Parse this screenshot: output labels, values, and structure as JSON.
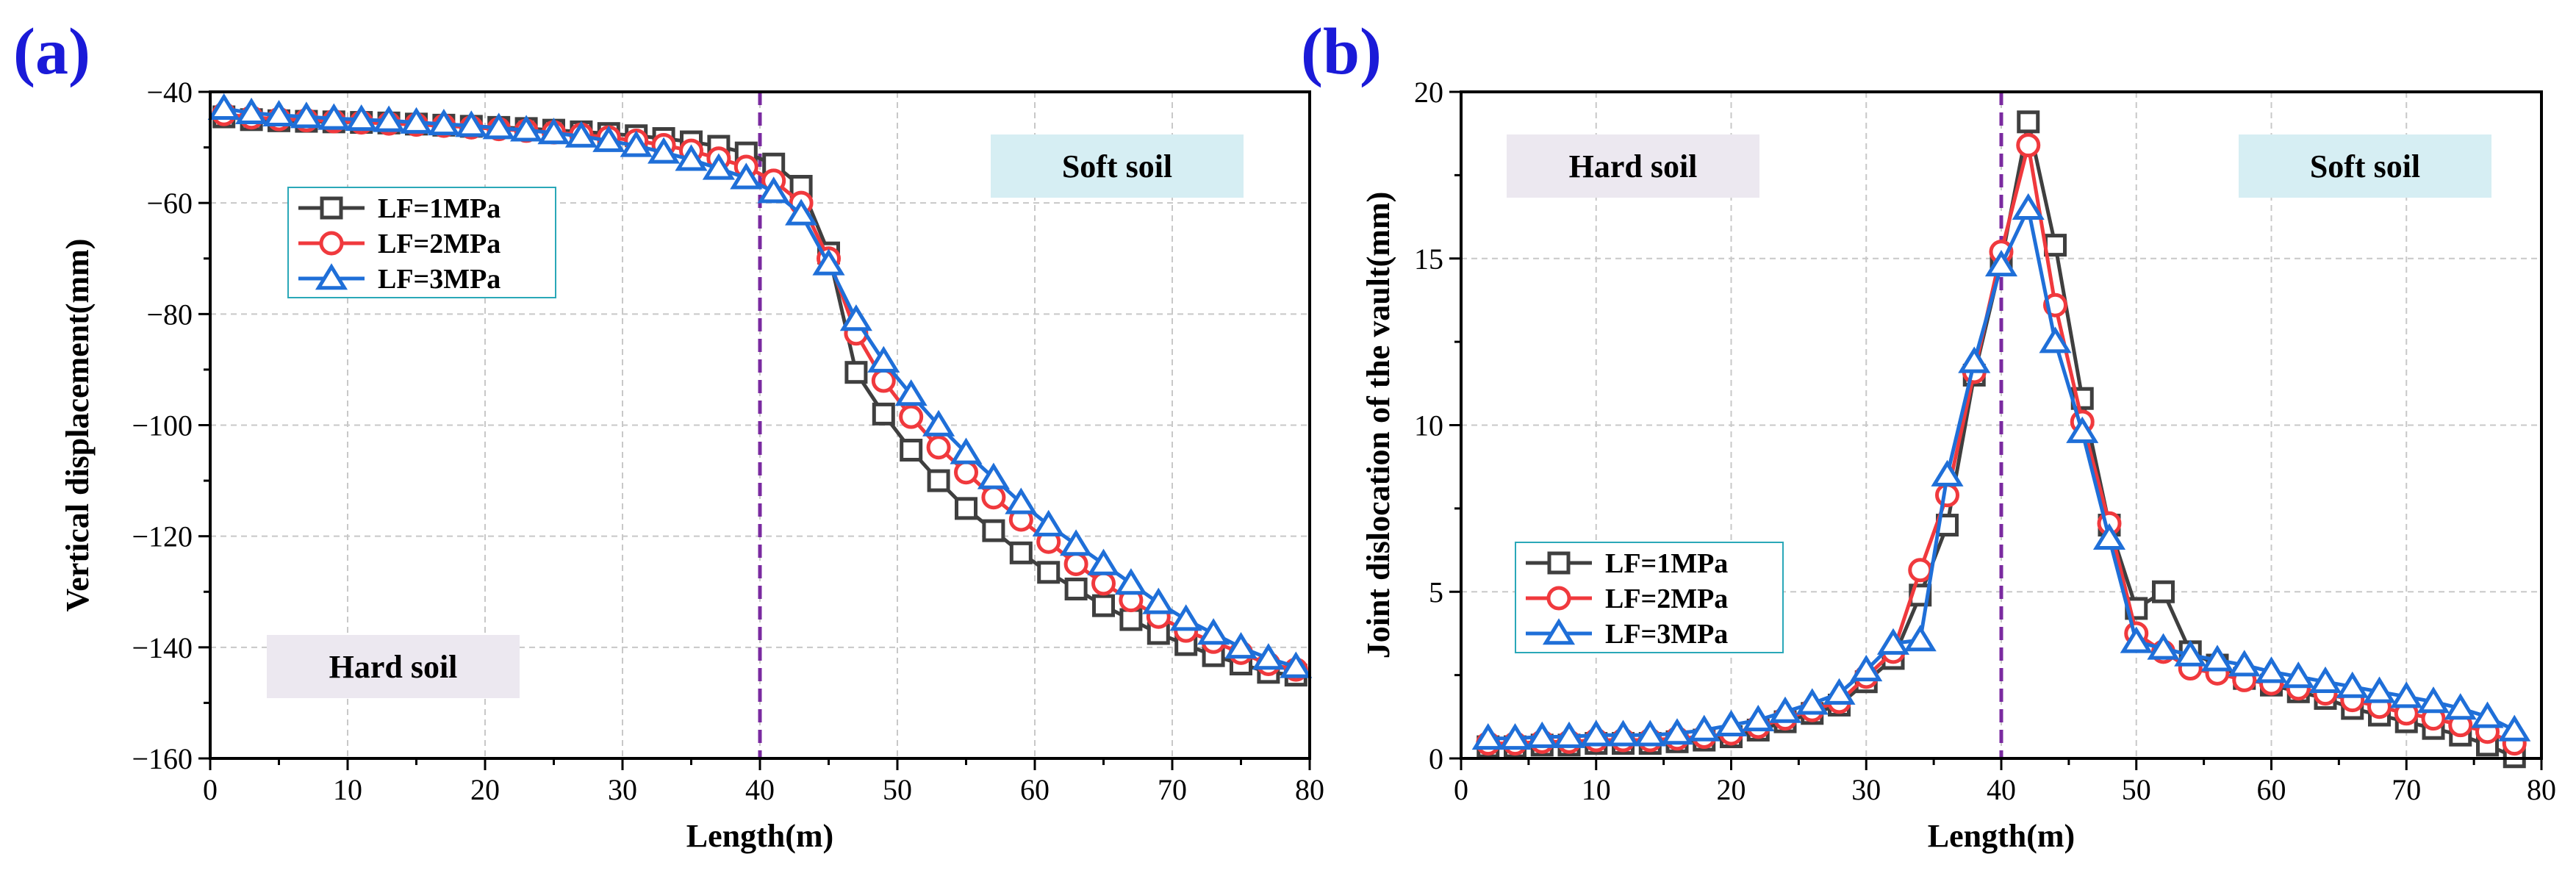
{
  "chart_data": [
    {
      "panel_label": "(a)",
      "type": "line",
      "xlabel": "Length(m)",
      "ylabel": "Vertical displacement(mm)",
      "xlim": [
        0,
        80
      ],
      "ylim": [
        -160,
        -40
      ],
      "xticks": [
        0,
        10,
        20,
        30,
        40,
        50,
        60,
        70,
        80
      ],
      "yticks": [
        -160,
        -140,
        -120,
        -100,
        -80,
        -60,
        -40
      ],
      "grid": true,
      "divider_x": 40,
      "legend_position": "upper-left",
      "zones": [
        {
          "label": "Soft soil",
          "placement": "top-right",
          "color": "#d6eef3"
        },
        {
          "label": "Hard soil",
          "placement": "bottom-left",
          "color": "#ece8f0"
        }
      ],
      "x": [
        1,
        3,
        5,
        7,
        9,
        11,
        13,
        15,
        17,
        19,
        21,
        23,
        25,
        27,
        29,
        31,
        33,
        35,
        37,
        39,
        41,
        43,
        45,
        47,
        49,
        51,
        53,
        55,
        57,
        59,
        61,
        63,
        65,
        67,
        69,
        71,
        73,
        75,
        77,
        79
      ],
      "series": [
        {
          "name": "LF=1MPa",
          "color": "#3f3f3f",
          "marker": "square",
          "values": [
            -44.5,
            -45,
            -45.2,
            -45.3,
            -45.4,
            -45.5,
            -45.6,
            -45.8,
            -46,
            -46.2,
            -46.4,
            -46.6,
            -46.9,
            -47.2,
            -47.5,
            -47.9,
            -48.4,
            -49,
            -49.8,
            -51,
            -53,
            -57,
            -69,
            -90.5,
            -98,
            -104.5,
            -110,
            -115,
            -119,
            -123,
            -126.5,
            -129.5,
            -132.5,
            -135,
            -137.5,
            -139.5,
            -141.5,
            -143,
            -144.5,
            -145
          ]
        },
        {
          "name": "LF=2MPa",
          "color": "#f0393d",
          "marker": "circle",
          "values": [
            -44,
            -44.6,
            -44.9,
            -45.1,
            -45.3,
            -45.5,
            -45.7,
            -45.9,
            -46.1,
            -46.4,
            -46.7,
            -47,
            -47.3,
            -47.7,
            -48.2,
            -48.8,
            -49.6,
            -50.6,
            -52,
            -53.5,
            -56,
            -60,
            -70,
            -83.5,
            -92,
            -98.5,
            -104,
            -108.5,
            -113,
            -117,
            -121,
            -125,
            -128.5,
            -131.5,
            -134.5,
            -137,
            -139,
            -141,
            -143,
            -144
          ]
        },
        {
          "name": "LF=3MPa",
          "color": "#1f6fd8",
          "marker": "triangle",
          "values": [
            -43,
            -43.8,
            -44.2,
            -44.5,
            -44.8,
            -45,
            -45.2,
            -45.5,
            -45.8,
            -46.1,
            -46.5,
            -46.9,
            -47.4,
            -48,
            -48.8,
            -49.7,
            -50.9,
            -52.2,
            -53.8,
            -55.5,
            -58,
            -62,
            -71,
            -81,
            -88.5,
            -94.5,
            -100,
            -105,
            -109.5,
            -114,
            -118,
            -121.5,
            -125,
            -128.5,
            -132,
            -135,
            -137.5,
            -140,
            -142,
            -143.5
          ]
        }
      ]
    },
    {
      "panel_label": "(b)",
      "type": "line",
      "xlabel": "Length(m)",
      "ylabel": "Joint dislocation of the vault(mm)",
      "xlim": [
        0,
        80
      ],
      "ylim": [
        0,
        20
      ],
      "xticks": [
        0,
        10,
        20,
        30,
        40,
        50,
        60,
        70,
        80
      ],
      "yticks": [
        0,
        5,
        10,
        15,
        20
      ],
      "grid": true,
      "divider_x": 40,
      "legend_position": "lower-left",
      "zones": [
        {
          "label": "Hard soil",
          "placement": "top-left",
          "color": "#ece8f0"
        },
        {
          "label": "Soft soil",
          "placement": "top-right",
          "color": "#d6eef3"
        }
      ],
      "x": [
        2,
        4,
        6,
        8,
        10,
        12,
        14,
        16,
        18,
        20,
        22,
        24,
        26,
        28,
        30,
        32,
        34,
        36,
        38,
        40,
        42,
        44,
        46,
        48,
        50,
        52,
        54,
        56,
        58,
        60,
        62,
        64,
        66,
        68,
        70,
        72,
        74,
        76,
        78
      ],
      "series": [
        {
          "name": "LF=1MPa",
          "color": "#3f3f3f",
          "marker": "square",
          "values": [
            0.35,
            0.35,
            0.4,
            0.4,
            0.45,
            0.45,
            0.45,
            0.5,
            0.55,
            0.65,
            0.85,
            1.1,
            1.35,
            1.6,
            2.3,
            3.0,
            4.9,
            7.0,
            11.5,
            14.9,
            19.1,
            15.4,
            10.8,
            7.0,
            4.5,
            5.0,
            3.2,
            2.8,
            2.4,
            2.2,
            2.0,
            1.8,
            1.5,
            1.3,
            1.1,
            0.9,
            0.7,
            0.4,
            0.05
          ]
        },
        {
          "name": "LF=2MPa",
          "color": "#f0393d",
          "marker": "circle",
          "values": [
            0.45,
            0.45,
            0.5,
            0.5,
            0.55,
            0.55,
            0.55,
            0.6,
            0.65,
            0.75,
            0.95,
            1.2,
            1.45,
            1.7,
            2.45,
            3.2,
            5.65,
            7.9,
            11.6,
            15.2,
            18.4,
            13.6,
            10.1,
            7.05,
            3.75,
            3.2,
            2.7,
            2.55,
            2.35,
            2.25,
            2.1,
            1.95,
            1.75,
            1.55,
            1.35,
            1.2,
            1.0,
            0.8,
            0.45
          ]
        },
        {
          "name": "LF=3MPa",
          "color": "#1f6fd8",
          "marker": "triangle",
          "values": [
            0.6,
            0.6,
            0.65,
            0.65,
            0.7,
            0.7,
            0.7,
            0.75,
            0.85,
            1.0,
            1.15,
            1.4,
            1.65,
            1.95,
            2.65,
            3.45,
            3.55,
            8.5,
            11.9,
            14.8,
            16.5,
            12.5,
            9.8,
            6.6,
            3.5,
            3.3,
            3.1,
            2.95,
            2.8,
            2.6,
            2.45,
            2.3,
            2.15,
            2.0,
            1.85,
            1.7,
            1.5,
            1.25,
            0.85
          ]
        }
      ]
    }
  ]
}
